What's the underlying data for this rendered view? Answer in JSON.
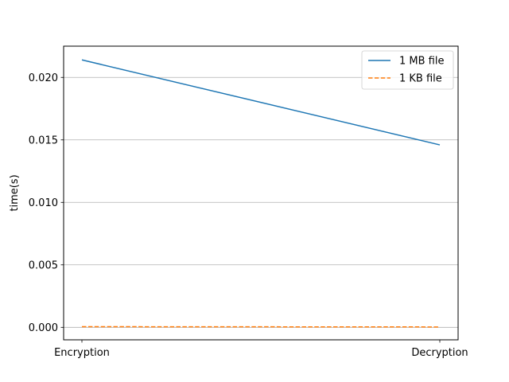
{
  "chart_data": {
    "type": "line",
    "title": "",
    "xlabel": "",
    "ylabel": "time(s)",
    "categories": [
      "Encryption",
      "Decryption"
    ],
    "ylim": [
      -0.001,
      0.0225
    ],
    "yticks": [
      "0.000",
      "0.005",
      "0.010",
      "0.015",
      "0.020"
    ],
    "grid": "horizontal",
    "legend_position": "top-right",
    "series": [
      {
        "name": "1 MB file",
        "values": [
          0.0214,
          0.0146
        ],
        "color": "#1f77b4",
        "style": "solid"
      },
      {
        "name": "1 KB file",
        "values": [
          5e-05,
          3e-05
        ],
        "color": "#ff7f0e",
        "style": "dashed"
      }
    ]
  }
}
